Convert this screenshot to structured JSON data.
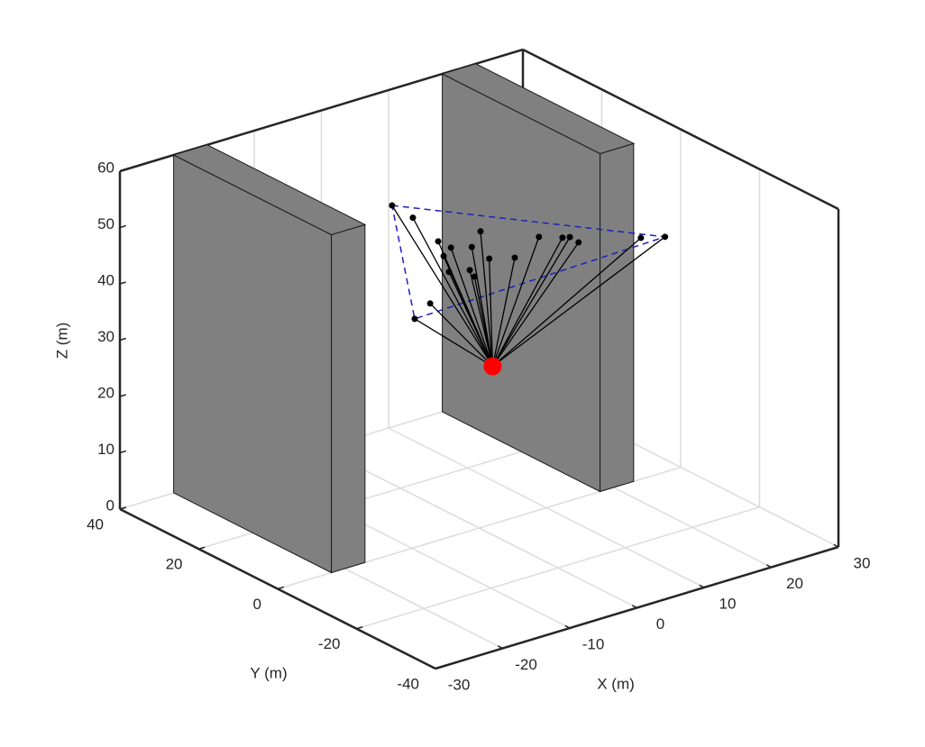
{
  "chart_data": {
    "type": "scatter3d",
    "xlabel": "X (m)",
    "ylabel": "Y (m)",
    "zlabel": "Z (m)",
    "xlim": [
      -30,
      30
    ],
    "ylim": [
      -40,
      40
    ],
    "zlim": [
      0,
      60
    ],
    "xticks": [
      -30,
      -20,
      -10,
      0,
      10,
      20,
      30
    ],
    "yticks": [
      -40,
      -20,
      0,
      20,
      40
    ],
    "zticks": [
      0,
      10,
      20,
      30,
      40,
      50,
      60
    ],
    "grid": true,
    "obstacle_color": "#808080",
    "obstacles": [
      {
        "x": [
          -22,
          -17
        ],
        "y": [
          0,
          40
        ],
        "z": [
          0,
          60
        ]
      },
      {
        "x": [
          18,
          23
        ],
        "y": [
          0,
          40
        ],
        "z": [
          0,
          60
        ]
      }
    ],
    "points": {
      "color": "#000000",
      "x": [
        -7.1,
        -4.0,
        -6.1,
        -4.2,
        -5.3,
        0.2,
        -1.1,
        -4.5,
        -1.4,
        -0.7,
        1.5,
        5.3,
        8.9,
        12.4,
        13.5,
        14.8,
        18.2,
        21.8,
        -7.3,
        -9.6
      ],
      "y": [
        10,
        10,
        0,
        0,
        0,
        0,
        0,
        0,
        0,
        0,
        0,
        0,
        0,
        0,
        0,
        0,
        -10,
        -10,
        0,
        0
      ],
      "z": [
        56.3,
        53.0,
        53.1,
        51.3,
        50.2,
        52.6,
        50.3,
        47.1,
        46.3,
        44.9,
        47.3,
        46.1,
        48.5,
        47.1,
        46.8,
        45.4,
        48.5,
        47.4,
        42.5,
        40.6
      ]
    },
    "receiver": {
      "color": "#ff0000",
      "x": 2,
      "y": 0,
      "z": 28
    },
    "boundary": {
      "color": "#1f1fbf",
      "x": [
        -7.1,
        21.8,
        -9.6
      ],
      "y": [
        10,
        -10,
        0
      ],
      "z": [
        56.3,
        47.4,
        40.6
      ]
    }
  }
}
